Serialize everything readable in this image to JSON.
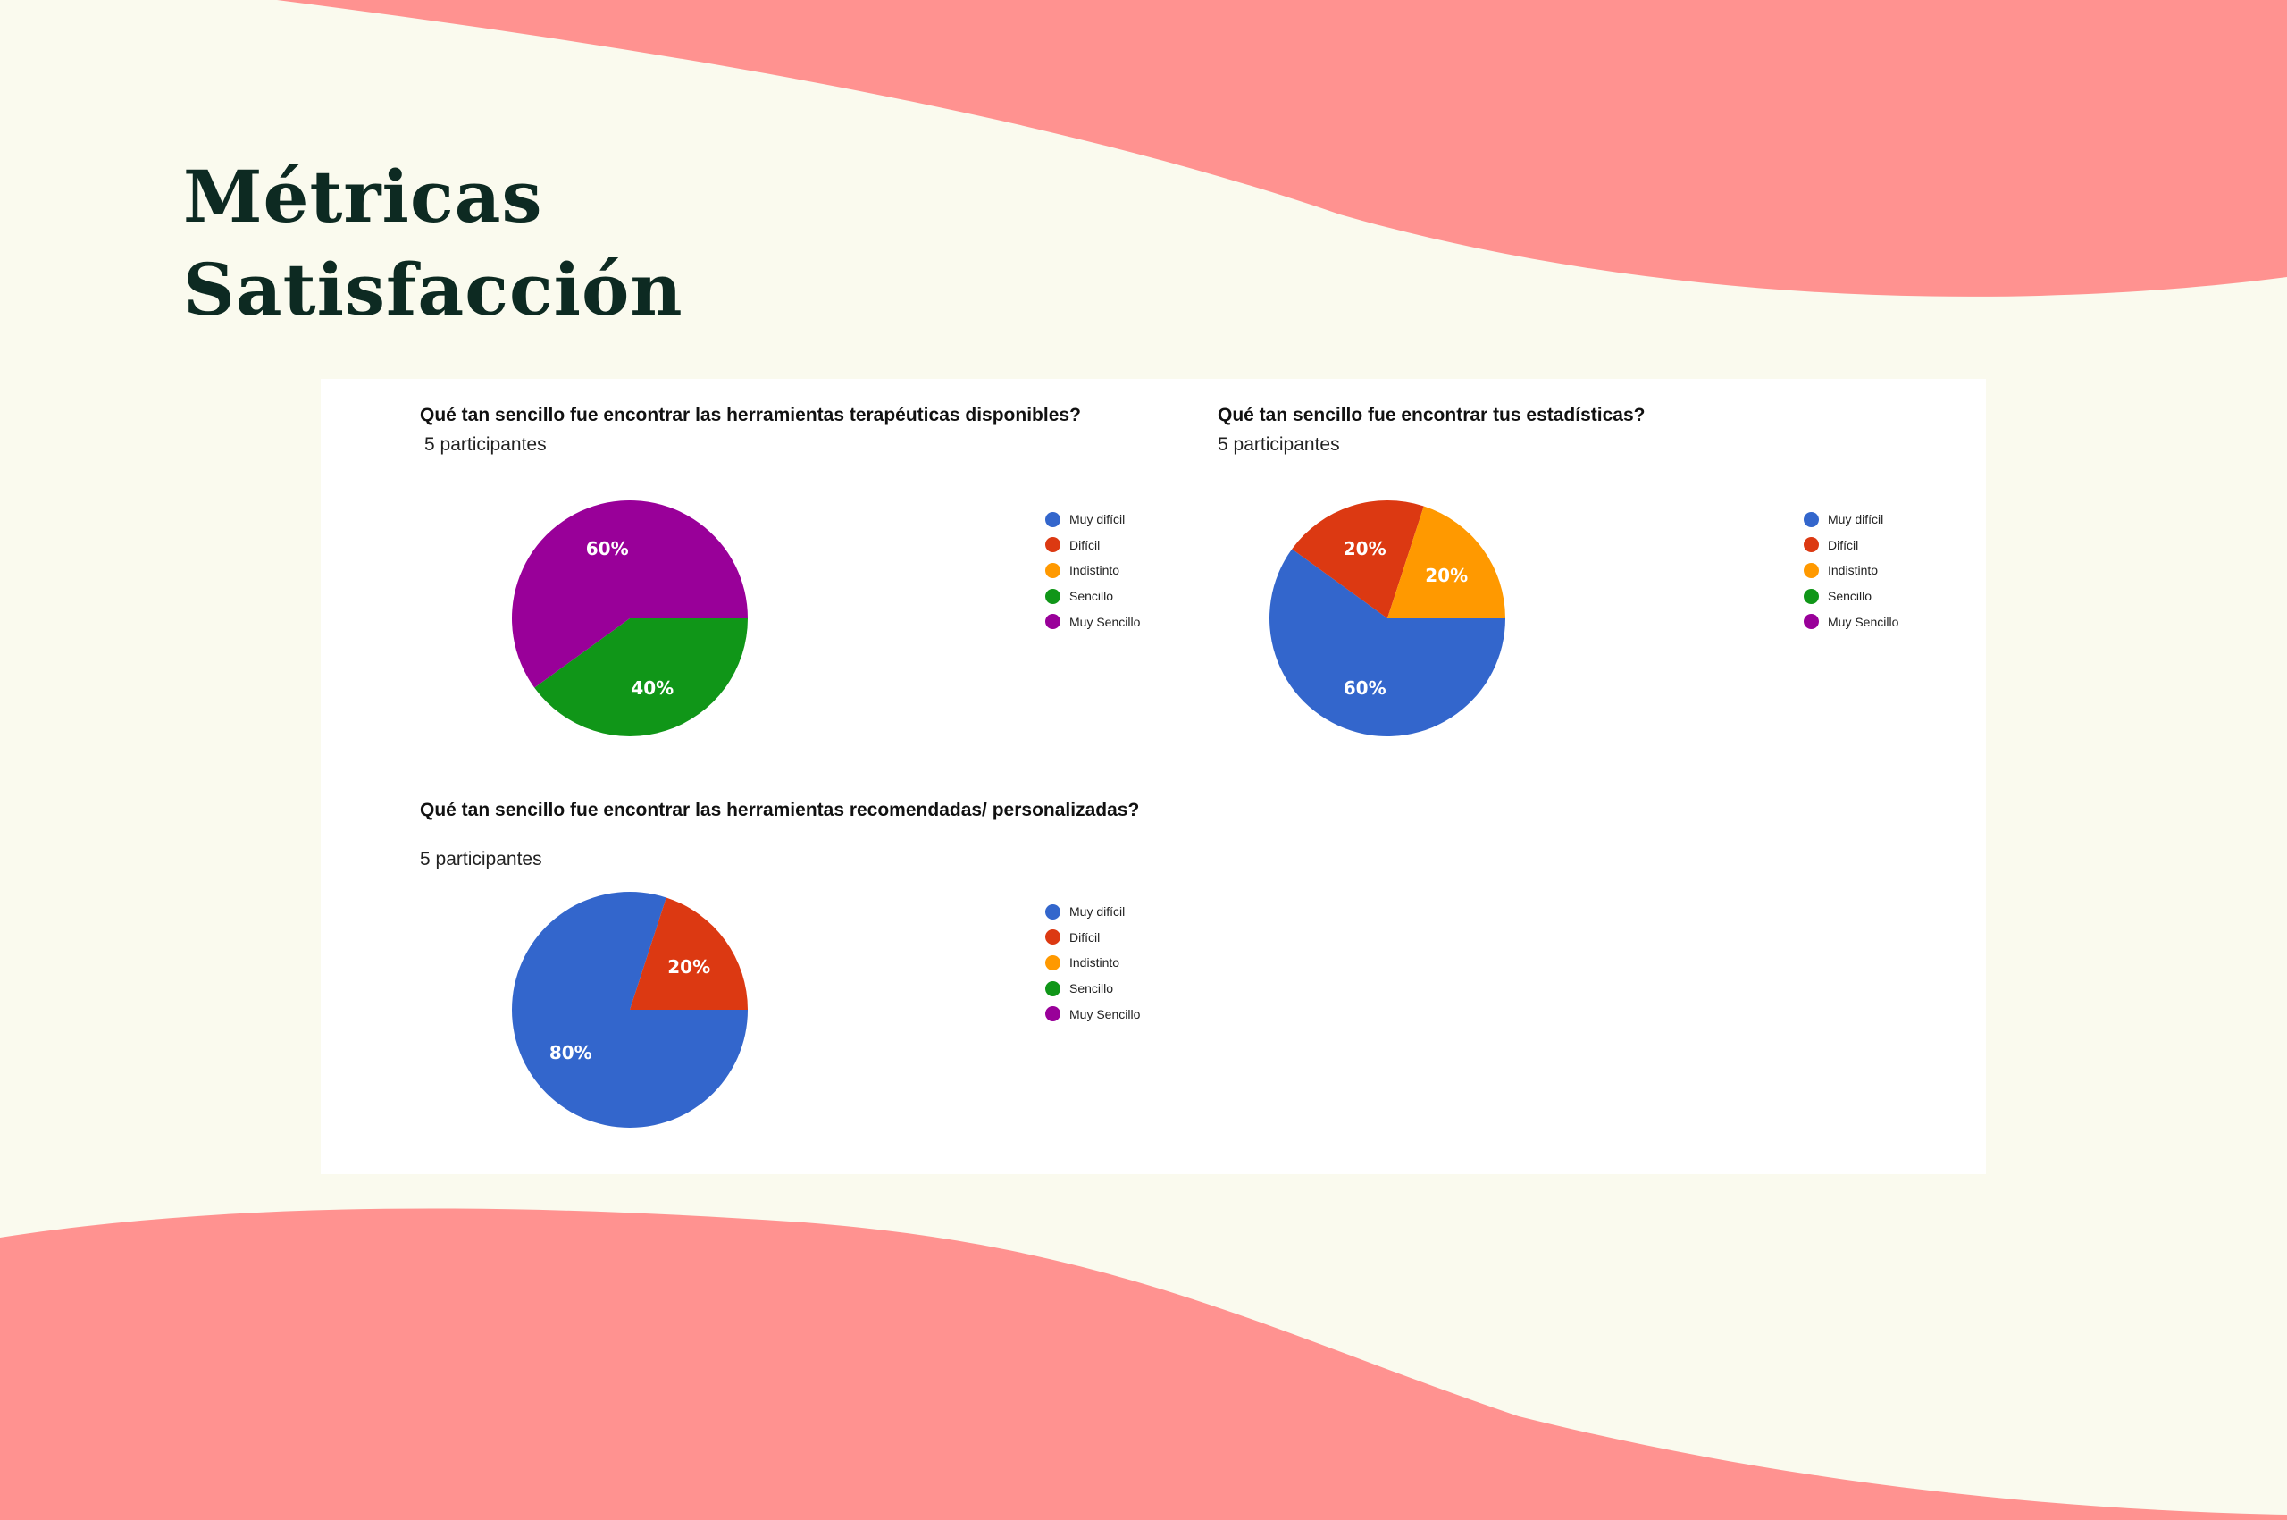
{
  "header": {
    "title_line1": "Métricas",
    "title_line2": "Satisfacción"
  },
  "theme": {
    "background": "#fafaee",
    "wave": "#ff9290",
    "title_color": "#0d2a22"
  },
  "legend_categories": [
    {
      "name": "Muy difícil",
      "color": "#3366cc"
    },
    {
      "name": "Difícil",
      "color": "#dc3912"
    },
    {
      "name": "Indistinto",
      "color": "#ff9900"
    },
    {
      "name": "Sencillo",
      "color": "#109618"
    },
    {
      "name": "Muy Sencillo",
      "color": "#990099"
    }
  ],
  "chart_data": [
    {
      "type": "pie",
      "title": "Qué tan sencillo fue encontrar las herramientas terapéuticas disponibles?",
      "subtitle": "5 participantes",
      "categories": [
        "Muy difícil",
        "Difícil",
        "Indistinto",
        "Sencillo",
        "Muy Sencillo"
      ],
      "values": [
        0,
        0,
        0,
        40,
        60
      ],
      "data_labels": [
        "",
        "",
        "",
        "40%",
        "60%"
      ],
      "legend": "right"
    },
    {
      "type": "pie",
      "title": "Qué tan sencillo fue encontrar tus estadísticas?",
      "subtitle": "5 participantes",
      "categories": [
        "Muy difícil",
        "Difícil",
        "Indistinto",
        "Sencillo",
        "Muy Sencillo"
      ],
      "values": [
        60,
        20,
        20,
        0,
        0
      ],
      "data_labels": [
        "60%",
        "20%",
        "20%",
        "",
        ""
      ],
      "legend": "right"
    },
    {
      "type": "pie",
      "title": "Qué tan sencillo fue encontrar las herramientas recomendadas/ personalizadas?",
      "subtitle": "5 participantes",
      "categories": [
        "Muy difícil",
        "Difícil",
        "Indistinto",
        "Sencillo",
        "Muy Sencillo"
      ],
      "values": [
        80,
        20,
        0,
        0,
        0
      ],
      "data_labels": [
        "80%",
        "20%",
        "",
        "",
        ""
      ],
      "legend": "right"
    }
  ]
}
